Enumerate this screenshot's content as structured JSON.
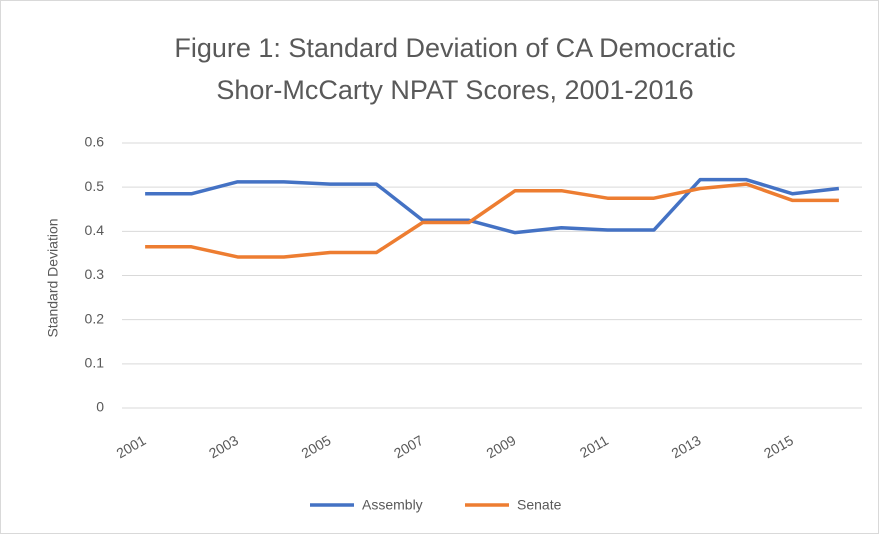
{
  "chart_data": {
    "type": "line",
    "title": [
      "Figure 1: Standard Deviation of CA Democratic",
      "Shor-McCarty NPAT Scores, 2001-2016"
    ],
    "y_label": "Standard Deviation",
    "categories": [
      "2001",
      null,
      "2003",
      null,
      "2005",
      null,
      "2007",
      null,
      "2009",
      null,
      "2011",
      null,
      "2013",
      null,
      "2015",
      null
    ],
    "series": [
      {
        "name": "Assembly",
        "color": "#4472c4",
        "values": [
          0.485,
          0.485,
          0.512,
          0.512,
          0.507,
          0.507,
          0.425,
          0.425,
          0.397,
          0.408,
          0.403,
          0.403,
          0.517,
          0.517,
          0.485,
          0.497
        ]
      },
      {
        "name": "Senate",
        "color": "#ed7d31",
        "values": [
          0.365,
          0.365,
          0.342,
          0.342,
          0.352,
          0.352,
          0.42,
          0.42,
          0.492,
          0.492,
          0.475,
          0.475,
          0.497,
          0.507,
          0.47,
          0.47
        ]
      }
    ],
    "ylim": [
      0,
      0.6
    ],
    "yticks": [
      0,
      0.1,
      0.2,
      0.3,
      0.4,
      0.5,
      0.6
    ],
    "grid": true,
    "legend": "bottom"
  }
}
